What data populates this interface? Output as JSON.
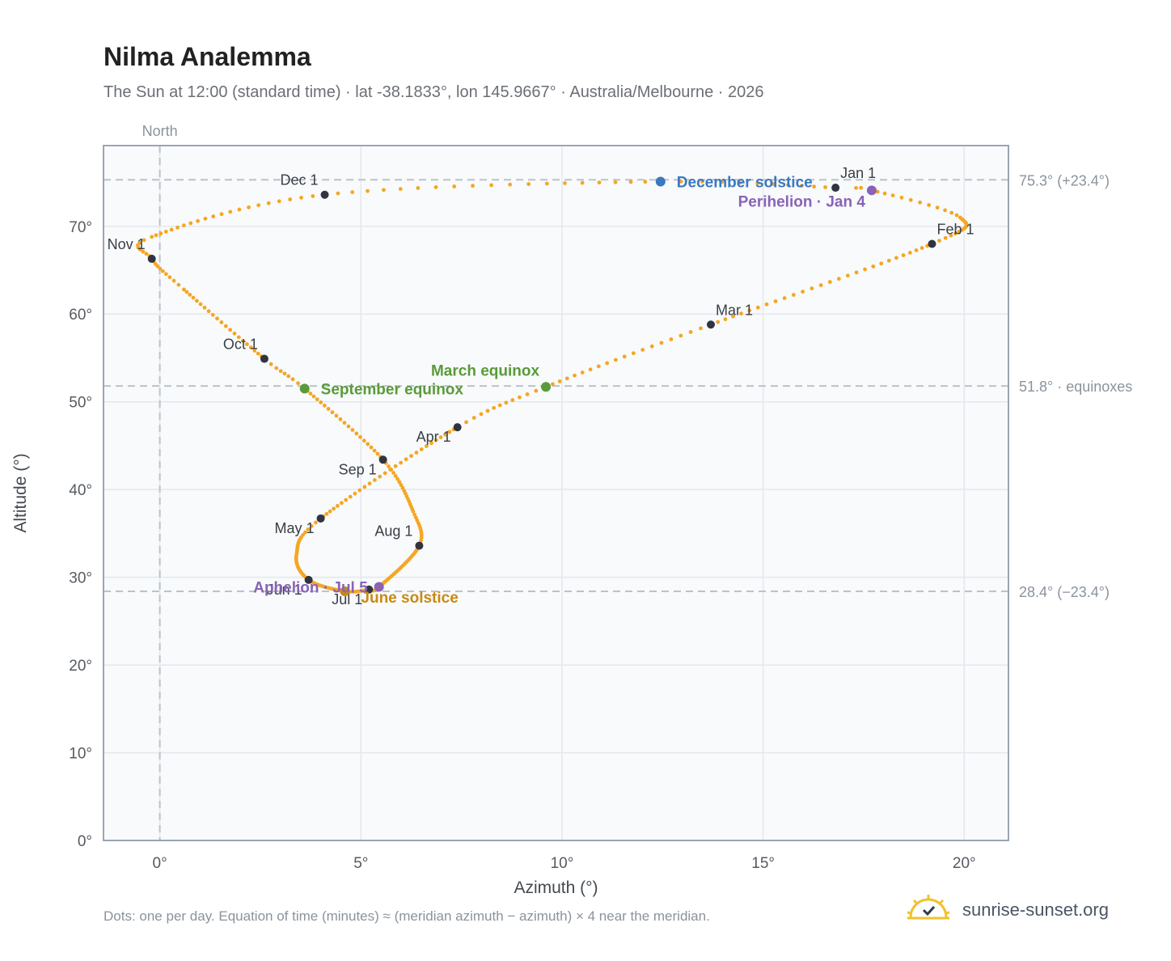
{
  "title": "Nilma Analemma",
  "subtitle": "The Sun at 12:00 (standard time) · lat -38.1833°, lon 145.9667° · Australia/Melbourne · 2026",
  "footnote": "Dots: one per day. Equation of time (minutes) ≈ (meridian azimuth − azimuth) × 4 near the meridian.",
  "brand": {
    "name": "sunrise-sunset.org",
    "icon": "sun-check-icon"
  },
  "colors": {
    "path": "#f5a623",
    "month_marker": "#2f3440",
    "equinox": "#5a9a3a",
    "june_solstice": "#c98a12",
    "december_solstice": "#3b78c2",
    "aphelion_perihelion": "#8a63b5",
    "plot_background": "#f8fafc",
    "grid": "#e3e8ee",
    "reference_line": "#b9c3cc",
    "frame": "#9aa5b1"
  },
  "chart_data": {
    "type": "scatter",
    "xlabel": "Azimuth (°)",
    "ylabel": "Altitude (°)",
    "xlim": [
      -1.4,
      21.1
    ],
    "ylim": [
      0,
      79.2
    ],
    "xticks": [
      0,
      5,
      10,
      15,
      20
    ],
    "xtick_labels": [
      "0°",
      "5°",
      "10°",
      "15°",
      "20°"
    ],
    "yticks": [
      0,
      10,
      20,
      30,
      40,
      50,
      60,
      70
    ],
    "ytick_labels": [
      "0°",
      "10°",
      "20°",
      "30°",
      "40°",
      "50°",
      "60°",
      "70°"
    ],
    "grid": true,
    "meridian": {
      "x": 0,
      "label": "North"
    },
    "reference_lines": [
      {
        "y": 75.3,
        "label": "75.3° (+23.4°)"
      },
      {
        "y": 51.8,
        "label": "51.8° · equinoxes"
      },
      {
        "y": 28.4,
        "label": "28.4° (−23.4°)"
      }
    ],
    "path_knots": [
      {
        "day": 1,
        "az": 16.8,
        "alt": 74.4
      },
      {
        "day": 4,
        "az": 17.7,
        "alt": 74.1
      },
      {
        "day": 16,
        "az": 19.9,
        "alt": 71.0
      },
      {
        "day": 32,
        "az": 19.2,
        "alt": 68.0
      },
      {
        "day": 60,
        "az": 13.7,
        "alt": 58.8
      },
      {
        "day": 79,
        "az": 9.6,
        "alt": 51.7
      },
      {
        "day": 91,
        "az": 7.4,
        "alt": 47.1
      },
      {
        "day": 121,
        "az": 4.0,
        "alt": 36.7
      },
      {
        "day": 136,
        "az": 3.4,
        "alt": 32.6
      },
      {
        "day": 152,
        "az": 3.7,
        "alt": 29.7
      },
      {
        "day": 172,
        "az": 4.6,
        "alt": 28.4
      },
      {
        "day": 182,
        "az": 5.2,
        "alt": 28.6
      },
      {
        "day": 186,
        "az": 5.45,
        "alt": 28.9
      },
      {
        "day": 213,
        "az": 6.45,
        "alt": 33.6
      },
      {
        "day": 226,
        "az": 6.3,
        "alt": 37.5
      },
      {
        "day": 244,
        "az": 5.55,
        "alt": 43.4
      },
      {
        "day": 266,
        "az": 3.6,
        "alt": 51.5
      },
      {
        "day": 274,
        "az": 2.6,
        "alt": 54.9
      },
      {
        "day": 295,
        "az": 0.6,
        "alt": 62.8
      },
      {
        "day": 305,
        "az": -0.2,
        "alt": 66.3
      },
      {
        "day": 314,
        "az": -0.2,
        "alt": 68.8
      },
      {
        "day": 335,
        "az": 4.1,
        "alt": 73.6
      },
      {
        "day": 355,
        "az": 12.4,
        "alt": 75.1
      },
      {
        "day": 366,
        "az": 16.8,
        "alt": 74.4
      }
    ],
    "month_markers": [
      {
        "label": "Jan 1",
        "az": 16.8,
        "alt": 74.4,
        "anchor": "right-above"
      },
      {
        "label": "Feb 1",
        "az": 19.2,
        "alt": 68.0,
        "anchor": "right-above"
      },
      {
        "label": "Mar 1",
        "az": 13.7,
        "alt": 58.8,
        "anchor": "right-above"
      },
      {
        "label": "Apr 1",
        "az": 7.4,
        "alt": 47.1,
        "anchor": "left-below"
      },
      {
        "label": "May 1",
        "az": 4.0,
        "alt": 36.7,
        "anchor": "left-below"
      },
      {
        "label": "Jun 1",
        "az": 3.7,
        "alt": 29.7,
        "anchor": "left-below"
      },
      {
        "label": "Jul 1",
        "az": 5.2,
        "alt": 28.6,
        "anchor": "left-below"
      },
      {
        "label": "Aug 1",
        "az": 6.45,
        "alt": 33.6,
        "anchor": "left-above"
      },
      {
        "label": "Sep 1",
        "az": 5.55,
        "alt": 43.4,
        "anchor": "left-below"
      },
      {
        "label": "Oct 1",
        "az": 2.6,
        "alt": 54.9,
        "anchor": "left-above"
      },
      {
        "label": "Nov 1",
        "az": -0.2,
        "alt": 66.3,
        "anchor": "left-above"
      },
      {
        "label": "Dec 1",
        "az": 4.1,
        "alt": 73.6,
        "anchor": "left-above"
      }
    ],
    "events": [
      {
        "label": "March equinox",
        "az": 9.6,
        "alt": 51.7,
        "color_key": "equinox",
        "anchor": "left-above"
      },
      {
        "label": "September equinox",
        "az": 3.6,
        "alt": 51.5,
        "color_key": "equinox",
        "anchor": "right"
      },
      {
        "label": "June solstice",
        "az": 4.6,
        "alt": 28.4,
        "color_key": "june_solstice",
        "anchor": "right-below"
      },
      {
        "label": "December solstice",
        "az": 12.45,
        "alt": 75.1,
        "color_key": "december_solstice",
        "anchor": "right"
      },
      {
        "label": "Aphelion · Jul 5",
        "az": 5.45,
        "alt": 28.9,
        "color_key": "aphelion_perihelion",
        "anchor": "left"
      },
      {
        "label": "Perihelion · Jan 4",
        "az": 17.7,
        "alt": 74.1,
        "color_key": "aphelion_perihelion",
        "anchor": "left-below"
      }
    ]
  }
}
